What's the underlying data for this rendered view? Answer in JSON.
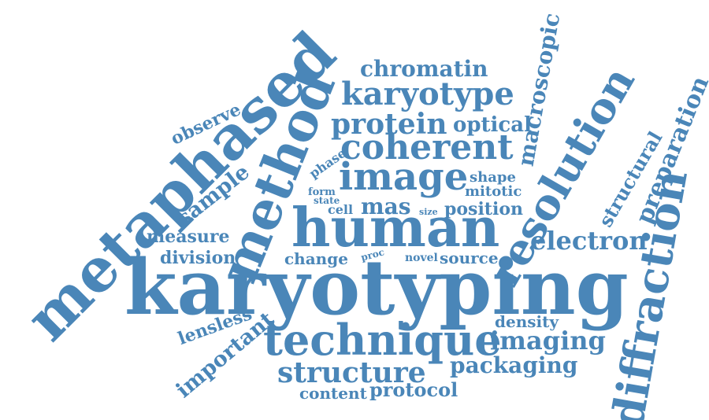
{
  "colors": {
    "primary": "#4a86b8",
    "dark": "#3e7cb1",
    "light": "#5b93c2",
    "background": "#ffffff"
  },
  "words": {
    "karyotyping": "karyotyping",
    "metaphased": "metaphased",
    "human": "human",
    "method": "method",
    "technique": "technique",
    "diffraction": "diffraction",
    "resolution": "resolution",
    "image": "image",
    "coherent": "coherent",
    "karyotype": "karyotype",
    "protein": "protein",
    "structure": "structure",
    "chromatin": "chromatin",
    "macroscopic": "macroscopic",
    "preparation": "preparation",
    "electron": "electron",
    "imaging": "imaging",
    "packaging": "packaging",
    "important": "important",
    "sample": "sample",
    "protocol": "protocol",
    "optical": "optical",
    "structural": "structural",
    "mas": "mas",
    "lensless": "lensless",
    "observe": "observe",
    "measure": "measure",
    "division": "division",
    "position": "position",
    "content": "content",
    "density": "density",
    "source": "source",
    "change": "change",
    "mitotic": "mitotic",
    "shape": "shape",
    "cell": "cell",
    "phase": "phase",
    "novel": "novel",
    "form": "form",
    "state": "state",
    "proc": "proc",
    "size": "size"
  }
}
